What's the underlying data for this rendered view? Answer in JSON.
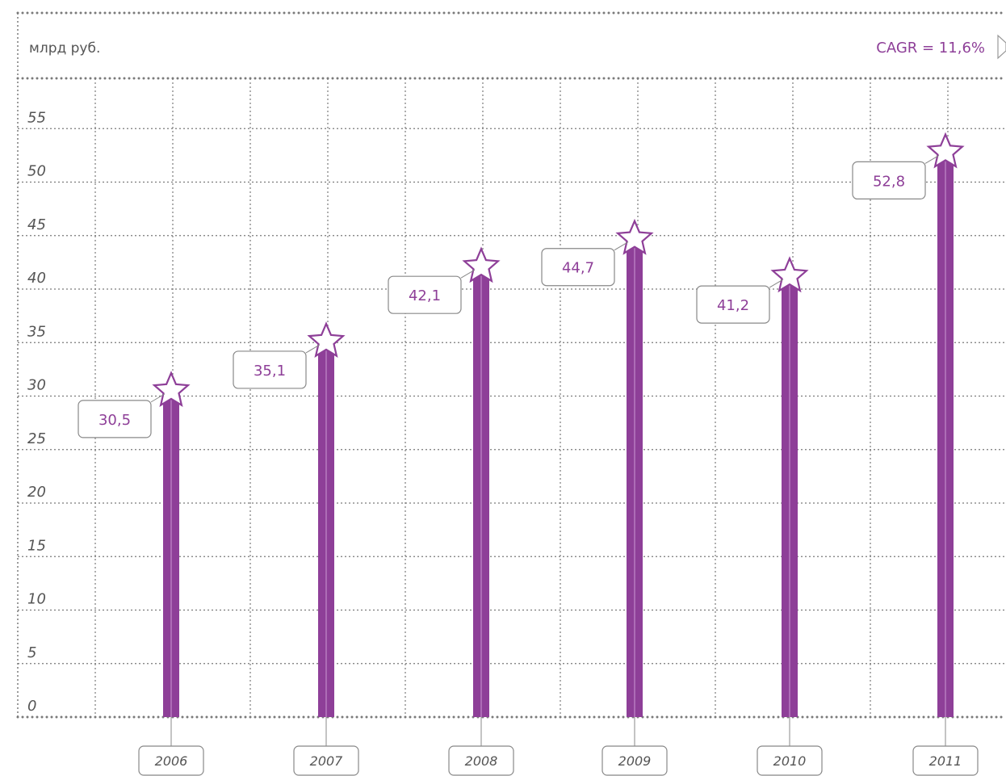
{
  "header": {
    "unit": "млрд руб.",
    "cagr": "CAGR = 11,6%"
  },
  "colors": {
    "bar": "#8e3f98",
    "bar_stripe": "#b77cc0",
    "accent_text": "#8e3f98",
    "grid": "#7a7a7a",
    "label_text": "#555555"
  },
  "chart_data": {
    "type": "bar",
    "categories": [
      "2006",
      "2007",
      "2008",
      "2009",
      "2010",
      "2011"
    ],
    "values": [
      30.5,
      35.1,
      42.1,
      44.7,
      41.2,
      52.8
    ],
    "value_labels": [
      "30,5",
      "35,1",
      "42,1",
      "44,7",
      "41,2",
      "52,8"
    ],
    "yticks": [
      "0",
      "5",
      "10",
      "15",
      "20",
      "25",
      "30",
      "35",
      "40",
      "45",
      "50",
      "55"
    ],
    "ylim": [
      0,
      55
    ],
    "grid": true,
    "marker": "star"
  }
}
